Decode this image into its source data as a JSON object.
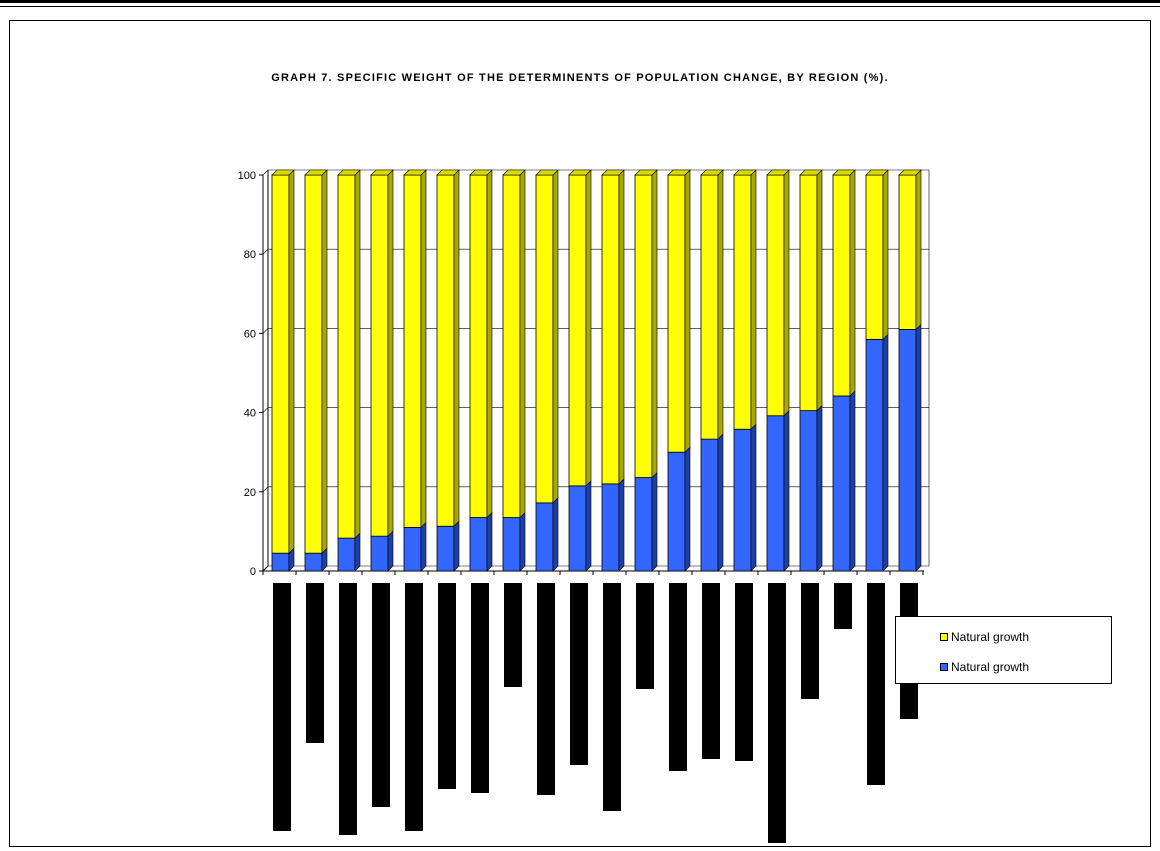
{
  "chart_data": {
    "type": "bar",
    "title": "GRAPH 7. SPECIFIC WEIGHT OF THE DETERMINENTS OF POPULATION CHANGE, BY REGION (%).",
    "stacked": true,
    "ylim": [
      0,
      100
    ],
    "yticks": [
      0,
      20,
      40,
      60,
      80,
      100
    ],
    "grid": true,
    "legend_position": "bottom-right",
    "categories": [
      "",
      "",
      "",
      "",
      "",
      "",
      "",
      "",
      "",
      "",
      "",
      "",
      "",
      "",
      "",
      "",
      "",
      "",
      "",
      ""
    ],
    "series": [
      {
        "name": "Natural growth",
        "color": "#3366FF",
        "values": [
          4.5,
          4.5,
          8.3,
          8.8,
          11,
          11.3,
          13.5,
          13.5,
          17.2,
          21.5,
          22,
          23.6,
          30,
          33.3,
          35.8,
          39.2,
          40.5,
          44.2,
          58.5,
          61
        ]
      },
      {
        "name": "Natural growth",
        "color": "#FFFF00",
        "values": [
          95.5,
          95.5,
          91.7,
          91.2,
          89,
          88.7,
          86.5,
          86.5,
          82.8,
          78.5,
          78,
          76.4,
          70,
          66.7,
          64.2,
          60.8,
          59.5,
          55.8,
          41.5,
          39
        ]
      }
    ],
    "lower_bars": {
      "color": "#000000",
      "values": [
        62,
        40,
        63,
        56,
        62,
        51.5,
        52.5,
        26,
        53,
        45.5,
        57,
        26.5,
        47,
        44,
        44.5,
        65,
        29,
        11.5,
        50.5,
        34
      ]
    }
  },
  "legend": {
    "items": [
      "Natural growth",
      "Natural growth"
    ]
  }
}
